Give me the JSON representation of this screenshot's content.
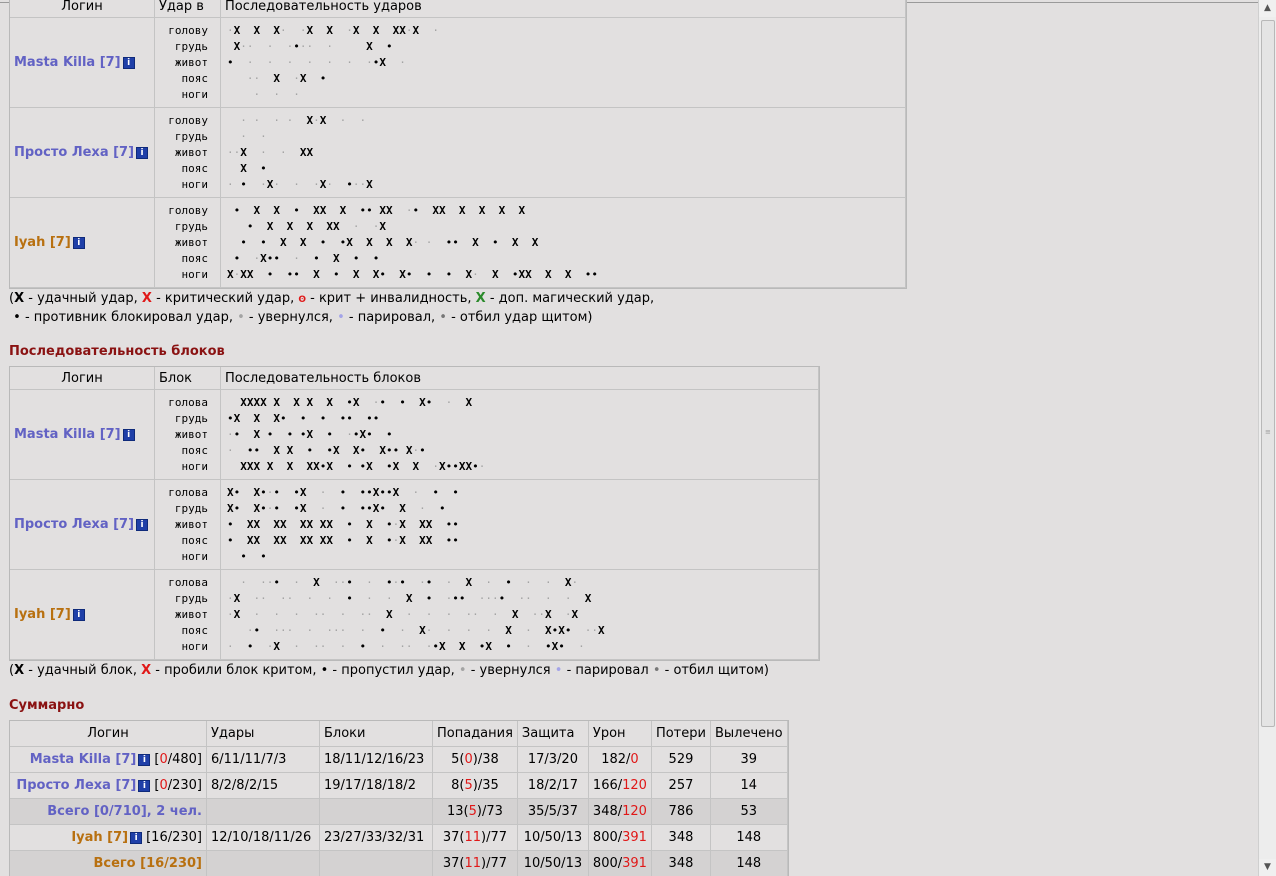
{
  "attacks": {
    "headers": {
      "login": "Логин",
      "zone": "Удар в",
      "seq": "Последовательность ударов"
    },
    "rows": [
      {
        "name": "Masta Killa [7]",
        "color": "#6262c4",
        "zones": [
          "голову",
          "грудь",
          "живот",
          "пояс",
          "ноги"
        ],
        "seq": [
          "·X  X  X·  ·X  X  ·X  X  XX·X  ·",
          " X··  ·  ·•··  ·     X  •",
          "•  ·  ·  ·  ·  ·  ·  ·•X  ·",
          "   ··  X  ·X  •",
          "    ·  ·  ·"
        ]
      },
      {
        "name": "Просто Леха [7]",
        "color": "#6262c4",
        "zones": [
          "голову",
          "грудь",
          "живот",
          "пояс",
          "ноги"
        ],
        "seq": [
          "  · ·  · ·  X·X  ·  ·",
          "  ·  ·",
          "··X  ·  ·  XX",
          "  X  •",
          "· •  ·X·  ·  ·X·  •··X"
        ]
      },
      {
        "name": "Iyah [7]",
        "color": "#b87010",
        "zones": [
          "голову",
          "грудь",
          "живот",
          "пояс",
          "ноги"
        ],
        "seq": [
          " •  X  X  •  XX  X  •• XX  ·•  XX  X  X  X  X",
          "   •  X  X  X  XX  ·  ·X",
          "  •  •  X  X  •  •X  X  X  X· ·  ••  X  •  X  X",
          " •  ·X••  ·  •  X  •  •",
          "X·XX  •  ••  X  •  X  X•  X•  •  •  X·  X  •XX  X  X  ••"
        ]
      }
    ]
  },
  "attack_legend": {
    "line1": "(X - удачный удар, X - критический удар, ▪ - крит + инвалидность, X - доп. магический удар,",
    "line2": " • - противник блокировал удар, • - увернулся, • - парировал, • - отбил удар щитом)"
  },
  "blocks_title": "Последовательность блоков",
  "blocks": {
    "headers": {
      "login": "Логин",
      "zone": "Блок",
      "seq": "Последовательность блоков"
    },
    "rows": [
      {
        "name": "Masta Killa [7]",
        "color": "#6262c4",
        "zones": [
          "голова",
          "грудь",
          "живот",
          "пояс",
          "ноги"
        ],
        "seq": [
          "  XXXX X  X X  X  •X  ·•  •  X•  ·  X",
          "•X  X  X•  •  •  ••  ••",
          "·•  X •  • •X  •  ·•X•  •",
          "·  ••  X X  •  •X  X•  X•• X·•",
          "  XXX X  X  XX•X  • •X  •X  X  ·X••XX•·"
        ]
      },
      {
        "name": "Просто Леха [7]",
        "color": "#6262c4",
        "zones": [
          "голова",
          "грудь",
          "живот",
          "пояс",
          "ноги"
        ],
        "seq": [
          "X•  X•·•  •X  ·  •  ••X••X  ·  •  •",
          "X•  X•·•  •X  ·  •  ••X•  X  ·  •",
          "•  XX  XX  XX XX  •  X  •·X  XX  ••",
          "•  XX  XX  XX XX  •  X  •·X  XX  ••",
          "  •  •"
        ]
      },
      {
        "name": "Iyah [7]",
        "color": "#b87010",
        "zones": [
          "голова",
          "грудь",
          "живот",
          "пояс",
          "ноги"
        ],
        "seq": [
          "  ·  ··•  ·  X  ··•  ·  •·•  ·•  ·  X  ·  •  ·  ·  X·",
          "·X  ··  ··  ·  ·  •  ·  ·  X  •  ·••  ···•  ··  ·  ·  X",
          "·X  ·  ·  ·  ··  ·  ··  X  ·  ·  ·  ··  ·  X  ··X  ·X",
          "   ·•  ···  ·  ···  ·  •  ·  X·  ·  ·  ·  X  ·  X•X•  ··X",
          "·  •  ·X  ·  ··  ·  •  ·  ··  ·•X  X  •X  •  ·  •X•  ·"
        ]
      }
    ]
  },
  "block_legend": "(X - удачный блок, X - пробили блок критом, • - пропустил удар, • - увернулся • - парировал • - отбил щитом)",
  "summary_title": "Суммарно",
  "summary": {
    "headers": [
      "Логин",
      "Удары",
      "Блоки",
      "Попадания",
      "Защита",
      "Урон",
      "Потери",
      "Вылечено"
    ],
    "rows": [
      {
        "login": "Masta Killa [7]",
        "hp": "[0/480]",
        "hp_red": "0",
        "udary": "6/11/11/7/3",
        "bloki": "18/11/12/16/23",
        "popad": "5(0)/38",
        "popad_red": "0",
        "zashita": "17/3/20",
        "uron": "182/0",
        "uron_red": "0",
        "poteri": "529",
        "vylech": "39",
        "color": "#6262c4",
        "total": false
      },
      {
        "login": "Просто Леха [7]",
        "hp": "[0/230]",
        "hp_red": "0",
        "udary": "8/2/8/2/15",
        "bloki": "19/17/18/18/2",
        "popad": "8(5)/35",
        "popad_red": "5",
        "zashita": "18/2/17",
        "uron": "166/120",
        "uron_red": "120",
        "poteri": "257",
        "vylech": "14",
        "color": "#6262c4",
        "total": false
      },
      {
        "login": "Всего [0/710], 2 чел.",
        "hp": "",
        "hp_red": "",
        "udary": "",
        "bloki": "",
        "popad": "13(5)/73",
        "popad_red": "5",
        "zashita": "35/5/37",
        "uron": "348/120",
        "uron_red": "120",
        "poteri": "786",
        "vylech": "53",
        "color": "#6262c4",
        "total": true
      },
      {
        "login": "Iyah [7]",
        "hp": "[16/230]",
        "hp_red": "",
        "udary": "12/10/18/11/26",
        "bloki": "23/27/33/32/31",
        "popad": "37(11)/77",
        "popad_red": "11",
        "zashita": "10/50/13",
        "uron": "800/391",
        "uron_red": "391",
        "poteri": "348",
        "vylech": "148",
        "color": "#b87010",
        "total": false
      },
      {
        "login": "Всего [16/230]",
        "hp": "",
        "hp_red": "",
        "udary": "",
        "bloki": "",
        "popad": "37(11)/77",
        "popad_red": "11",
        "zashita": "10/50/13",
        "uron": "800/391",
        "uron_red": "391",
        "poteri": "348",
        "vylech": "148",
        "color": "#b87010",
        "total": true
      }
    ]
  }
}
